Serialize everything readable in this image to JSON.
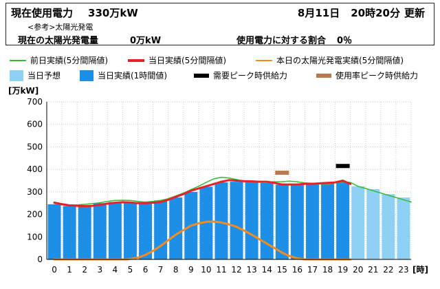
{
  "header": {
    "current_label": "現在使用電力",
    "current_value": "330万kW",
    "update_date": "8月11日",
    "update_time": "20時20分",
    "update_label": "更新",
    "reference_label": "<参考>太陽光発電",
    "solar_label": "現在の太陽光発電量",
    "solar_value": "0万kW",
    "ratio_label": "使用電力に対する割合",
    "ratio_value": "0％"
  },
  "chart_data": {
    "type": "bar",
    "ylabel": "[万kW]",
    "xlabel": "[時]",
    "ylim": [
      0,
      700
    ],
    "yticks": [
      0,
      100,
      200,
      300,
      400,
      500,
      600,
      700
    ],
    "categories": [
      "0",
      "1",
      "2",
      "3",
      "4",
      "5",
      "6",
      "7",
      "8",
      "9",
      "10",
      "11",
      "12",
      "13",
      "14",
      "15",
      "16",
      "17",
      "18",
      "19",
      "20",
      "21",
      "22",
      "23"
    ],
    "grid": true,
    "colors": {
      "forecast": "#8fd0f5",
      "actual_hourly": "#1e8fe6",
      "prev_day": "#33bb33",
      "today_5min": "#e8202a",
      "solar": "#f58b1f",
      "demand_peak": "#000000",
      "usage_peak": "#b87a50"
    },
    "legend": [
      {
        "key": "prev_day",
        "label": "前日実績(5分間隔値)",
        "kind": "line"
      },
      {
        "key": "today_5min",
        "label": "当日実績(5分間隔値)",
        "kind": "line"
      },
      {
        "key": "solar",
        "label": "本日の太陽光発電実績(5分間隔値)",
        "kind": "line"
      },
      {
        "key": "forecast",
        "label": "当日予想",
        "kind": "box"
      },
      {
        "key": "actual_hourly",
        "label": "当日実績(1時間値)",
        "kind": "box"
      },
      {
        "key": "demand_peak",
        "label": "需要ピーク時供給力",
        "kind": "bar"
      },
      {
        "key": "usage_peak",
        "label": "使用率ピーク時供給力",
        "kind": "bar"
      }
    ],
    "series": [
      {
        "key": "actual_hourly",
        "name": "当日実績(1時間値)",
        "values": [
          245,
          237,
          238,
          250,
          255,
          252,
          252,
          262,
          275,
          300,
          323,
          342,
          345,
          345,
          340,
          332,
          333,
          338,
          340,
          342,
          null,
          null,
          null,
          null
        ]
      },
      {
        "key": "forecast",
        "name": "当日予想",
        "values": [
          null,
          null,
          null,
          null,
          null,
          null,
          null,
          null,
          null,
          null,
          null,
          null,
          null,
          null,
          null,
          null,
          null,
          null,
          null,
          null,
          325,
          312,
          290,
          275
        ]
      },
      {
        "key": "prev_day",
        "name": "前日実績(5分間隔値)",
        "x": [
          0,
          0.5,
          1,
          1.5,
          2,
          2.5,
          3,
          3.5,
          4,
          4.5,
          5,
          5.5,
          6,
          6.5,
          7,
          7.5,
          8,
          8.5,
          9,
          9.5,
          10,
          10.5,
          11,
          11.5,
          12,
          12.5,
          13,
          13.5,
          14,
          14.5,
          15,
          15.5,
          16,
          16.5,
          17,
          17.5,
          18,
          18.5,
          19,
          19.5,
          20,
          20.5,
          21,
          21.5,
          22,
          22.5,
          23,
          23.5
        ],
        "values": [
          255,
          248,
          242,
          242,
          245,
          248,
          252,
          258,
          262,
          263,
          262,
          258,
          255,
          258,
          262,
          270,
          282,
          295,
          310,
          325,
          342,
          358,
          365,
          362,
          355,
          348,
          345,
          345,
          345,
          345,
          345,
          348,
          345,
          340,
          338,
          335,
          333,
          340,
          345,
          342,
          325,
          315,
          305,
          295,
          285,
          275,
          265,
          255
        ]
      },
      {
        "key": "today_5min",
        "name": "当日実績(5分間隔値)",
        "x": [
          0,
          0.5,
          1,
          1.5,
          2,
          2.5,
          3,
          3.5,
          4,
          4.5,
          5,
          5.5,
          6,
          6.5,
          7,
          7.5,
          8,
          8.5,
          9,
          9.5,
          10,
          10.5,
          11,
          11.5,
          12,
          12.5,
          13,
          13.5,
          14,
          14.5,
          15,
          15.5,
          16,
          16.5,
          17,
          17.5,
          18,
          18.5,
          19,
          19.5
        ],
        "values": [
          252,
          245,
          240,
          238,
          237,
          238,
          242,
          248,
          252,
          254,
          253,
          250,
          250,
          252,
          255,
          265,
          278,
          290,
          305,
          315,
          325,
          335,
          345,
          352,
          350,
          348,
          347,
          345,
          345,
          340,
          333,
          333,
          333,
          336,
          336,
          338,
          340,
          342,
          350,
          335
        ]
      },
      {
        "key": "solar",
        "name": "本日の太陽光発電実績(5分間隔値)",
        "x": [
          0,
          4.8,
          5.5,
          6,
          6.5,
          7,
          7.5,
          8,
          8.5,
          9,
          9.5,
          10,
          10.5,
          11,
          11.5,
          12,
          12.5,
          13,
          13.5,
          14,
          14.5,
          15,
          15.5,
          16,
          16.5,
          17,
          17.5,
          18,
          19.5
        ],
        "values": [
          0,
          0,
          8,
          20,
          38,
          60,
          85,
          110,
          130,
          150,
          160,
          167,
          168,
          164,
          156,
          145,
          128,
          110,
          90,
          70,
          50,
          30,
          15,
          5,
          0,
          0,
          0,
          0,
          0
        ]
      }
    ],
    "peak_markers": [
      {
        "key": "demand_peak",
        "x": 19,
        "value": 415
      },
      {
        "key": "usage_peak",
        "x": 15,
        "value": 385
      }
    ]
  }
}
